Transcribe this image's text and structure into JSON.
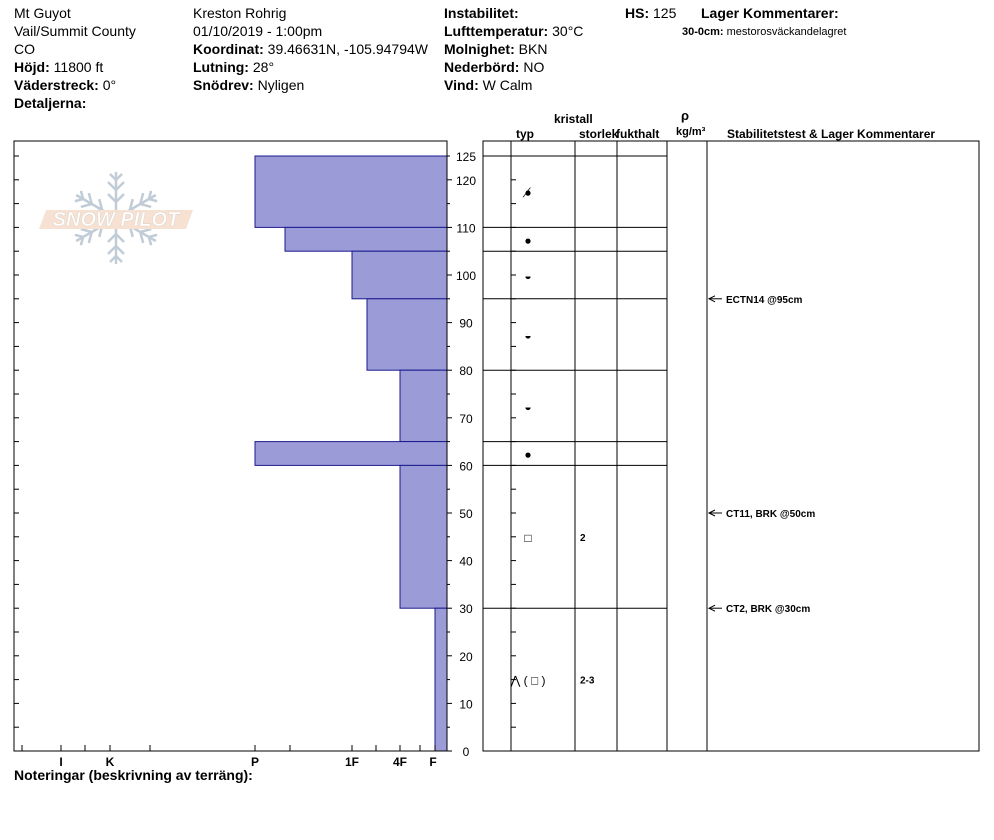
{
  "header": {
    "location": "Mt Guyot",
    "region": "Vail/Summit County",
    "state": "CO",
    "elevation_label": "Höjd:",
    "elevation_value": "11800 ft",
    "aspect_label": "Väderstreck:",
    "aspect_value": "0°",
    "details_label": "Detaljerna:",
    "observer": "Kreston Rohrig",
    "datetime": "01/10/2019 - 1:00pm",
    "coord_label": "Koordinat:",
    "coord_value": "39.46631N, -105.94794W",
    "slope_label": "Lutning:",
    "slope_value": "28°",
    "drift_label": "Snödrev:",
    "drift_value": "Nyligen",
    "instability_label": "Instabilitet:",
    "airtemp_label": "Lufttemperatur:",
    "airtemp_value": "30°C",
    "cloud_label": "Molnighet:",
    "cloud_value": "BKN",
    "precip_label": "Nederbörd:",
    "precip_value": "NO",
    "wind_label": "Vind:",
    "wind_value": "W Calm",
    "hs_label": "HS:",
    "hs_value": "125",
    "layer_comments_title": "Lager Kommentarer:",
    "layer_comment_range": "30-0cm:",
    "layer_comment_text": "mestorosväckandelagret"
  },
  "logo": {
    "text": "SNOW PILOT"
  },
  "columns": {
    "crystal": "kristall",
    "type": "typ",
    "size": "storlek",
    "moisture": "fukthalt",
    "rho": "ρ",
    "density": "kg/m³",
    "tests": "Stabilitetstest & Lager Kommentarer"
  },
  "footer": {
    "notes_label": "Noteringar (beskrivning av terräng):"
  },
  "chart_data": {
    "type": "snow-profile",
    "y_label": "cm",
    "ylim": [
      0,
      125
    ],
    "y_ticks": [
      0,
      10,
      20,
      30,
      40,
      50,
      60,
      70,
      80,
      90,
      100,
      110,
      120,
      125
    ],
    "hardness_scale": [
      "I",
      "K",
      "P",
      "1F",
      "4F",
      "F"
    ],
    "hardness_layers": [
      {
        "top": 125,
        "bottom": 110,
        "hardness": "P"
      },
      {
        "top": 110,
        "bottom": 105,
        "hardness": "P+"
      },
      {
        "top": 105,
        "bottom": 95,
        "hardness": "1F"
      },
      {
        "top": 95,
        "bottom": 80,
        "hardness": "1F+"
      },
      {
        "top": 80,
        "bottom": 65,
        "hardness": "4F"
      },
      {
        "top": 65,
        "bottom": 60,
        "hardness": "P"
      },
      {
        "top": 60,
        "bottom": 30,
        "hardness": "4F"
      },
      {
        "top": 30,
        "bottom": 0,
        "hardness": "F+"
      }
    ],
    "layer_boundaries": [
      125,
      110,
      105,
      95,
      80,
      65,
      60,
      30,
      0
    ],
    "crystals": [
      {
        "depth": 117.5,
        "symbol": "⦁̸",
        "size": ""
      },
      {
        "depth": 107.5,
        "symbol": "●",
        "size": ""
      },
      {
        "depth": 100,
        "symbol": "◒",
        "size": ""
      },
      {
        "depth": 87.5,
        "symbol": "◒",
        "size": ""
      },
      {
        "depth": 72.5,
        "symbol": "◒",
        "size": ""
      },
      {
        "depth": 62.5,
        "symbol": "●",
        "size": ""
      },
      {
        "depth": 45,
        "symbol": "□",
        "size": "2"
      },
      {
        "depth": 15,
        "symbol": "⋀ ( □ )",
        "size": "2-3"
      }
    ],
    "tests": [
      {
        "depth": 95,
        "label": "ECTN14 @95cm"
      },
      {
        "depth": 50,
        "label": "CT11, BRK @50cm"
      },
      {
        "depth": 30,
        "label": "CT2, BRK @30cm"
      }
    ]
  }
}
